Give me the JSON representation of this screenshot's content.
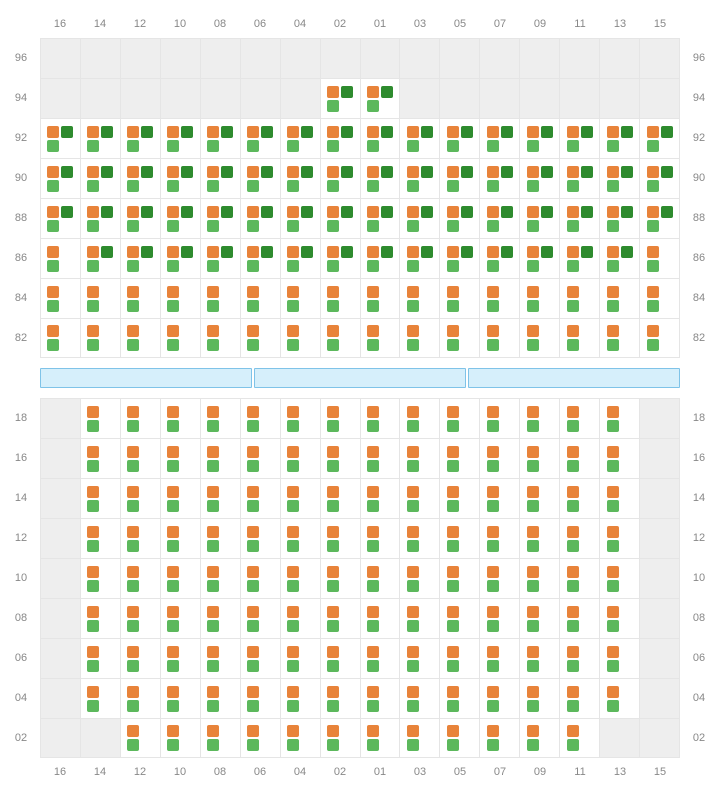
{
  "colors": {
    "orange": "#e8833a",
    "green": "#5cb85c",
    "dark_green": "#2e8b2e",
    "empty_bg": "#eeeeee",
    "grid_line": "#e5e5e5",
    "divider_fill": "#d6effb",
    "divider_border": "#7fc3e8",
    "label_color": "#888888"
  },
  "label_fontsize": 11,
  "column_labels": [
    "16",
    "14",
    "12",
    "10",
    "08",
    "06",
    "04",
    "02",
    "01",
    "03",
    "05",
    "07",
    "09",
    "11",
    "13",
    "15"
  ],
  "divider_segments": 3,
  "top_block": {
    "rows": [
      "96",
      "94",
      "92",
      "90",
      "88",
      "86",
      "84",
      "82"
    ],
    "cells": [
      [
        "e",
        "e",
        "e",
        "e",
        "e",
        "e",
        "e",
        "e",
        "e",
        "e",
        "e",
        "e",
        "e",
        "e",
        "e",
        "e"
      ],
      [
        "e",
        "e",
        "e",
        "e",
        "e",
        "e",
        "e",
        "B",
        "B",
        "e",
        "e",
        "e",
        "e",
        "e",
        "e",
        "e"
      ],
      [
        "B",
        "B",
        "B",
        "B",
        "B",
        "B",
        "B",
        "B",
        "B",
        "B",
        "B",
        "B",
        "B",
        "B",
        "B",
        "B"
      ],
      [
        "B",
        "B",
        "B",
        "B",
        "B",
        "B",
        "B",
        "B",
        "B",
        "B",
        "B",
        "B",
        "B",
        "B",
        "B",
        "B"
      ],
      [
        "B",
        "B",
        "B",
        "B",
        "B",
        "B",
        "B",
        "B",
        "B",
        "B",
        "B",
        "B",
        "B",
        "B",
        "B",
        "B"
      ],
      [
        "C",
        "B",
        "B",
        "B",
        "B",
        "B",
        "B",
        "B",
        "B",
        "B",
        "B",
        "B",
        "B",
        "B",
        "B",
        "C"
      ],
      [
        "A",
        "A",
        "A",
        "A",
        "A",
        "A",
        "A",
        "A",
        "A",
        "A",
        "A",
        "A",
        "A",
        "A",
        "A",
        "A"
      ],
      [
        "A",
        "A",
        "A",
        "A",
        "A",
        "A",
        "A",
        "A",
        "A",
        "A",
        "A",
        "A",
        "A",
        "A",
        "A",
        "A"
      ]
    ]
  },
  "bottom_block": {
    "rows": [
      "18",
      "16",
      "14",
      "12",
      "10",
      "08",
      "06",
      "04",
      "02"
    ],
    "cells": [
      [
        "e",
        "A",
        "A",
        "A",
        "A",
        "A",
        "A",
        "A",
        "A",
        "A",
        "A",
        "A",
        "A",
        "A",
        "A",
        "e"
      ],
      [
        "e",
        "A",
        "A",
        "A",
        "A",
        "A",
        "A",
        "A",
        "A",
        "A",
        "A",
        "A",
        "A",
        "A",
        "A",
        "e"
      ],
      [
        "e",
        "A",
        "A",
        "A",
        "A",
        "A",
        "A",
        "A",
        "A",
        "A",
        "A",
        "A",
        "A",
        "A",
        "A",
        "e"
      ],
      [
        "e",
        "A",
        "A",
        "A",
        "A",
        "A",
        "A",
        "A",
        "A",
        "A",
        "A",
        "A",
        "A",
        "A",
        "A",
        "e"
      ],
      [
        "e",
        "A",
        "A",
        "A",
        "A",
        "A",
        "A",
        "A",
        "A",
        "A",
        "A",
        "A",
        "A",
        "A",
        "A",
        "e"
      ],
      [
        "e",
        "A",
        "A",
        "A",
        "A",
        "A",
        "A",
        "A",
        "A",
        "A",
        "A",
        "A",
        "A",
        "A",
        "A",
        "e"
      ],
      [
        "e",
        "A",
        "A",
        "A",
        "A",
        "A",
        "A",
        "A",
        "A",
        "A",
        "A",
        "A",
        "A",
        "A",
        "A",
        "e"
      ],
      [
        "e",
        "A",
        "A",
        "A",
        "A",
        "A",
        "A",
        "A",
        "A",
        "A",
        "A",
        "A",
        "A",
        "A",
        "A",
        "e"
      ],
      [
        "e",
        "e",
        "A",
        "A",
        "A",
        "A",
        "A",
        "A",
        "A",
        "A",
        "A",
        "A",
        "A",
        "A",
        "e",
        "e"
      ]
    ]
  },
  "seat_patterns": {
    "A": {
      "tl": "orange",
      "tr": null,
      "bl": "green",
      "br": null
    },
    "B": {
      "tl": "orange",
      "tr": "dark_green",
      "bl": "green",
      "br": null
    },
    "C": {
      "tl": "orange",
      "tr": null,
      "bl": "green",
      "br": null
    },
    "D": {
      "tl": "orange",
      "tr": "dark_green",
      "bl": "green",
      "br": "dark_green"
    }
  }
}
